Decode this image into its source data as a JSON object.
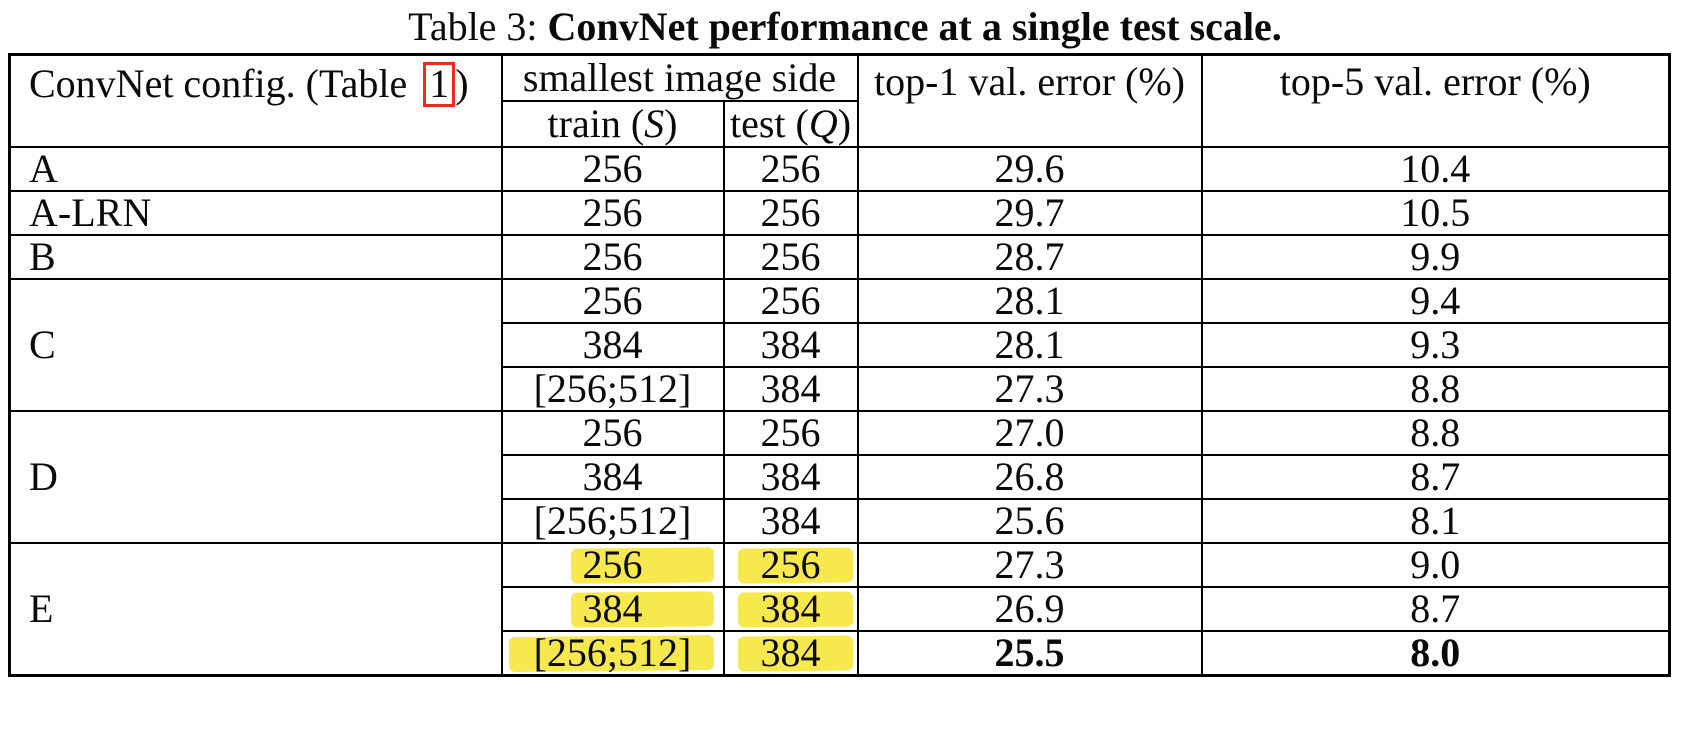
{
  "title": {
    "prefix": "Table 3: ",
    "main": "ConvNet performance at a single test scale."
  },
  "table": {
    "headers": {
      "config_pre": "ConvNet config. (Table ",
      "config_ref": "1",
      "config_post": ")",
      "smallest_image_side": "smallest image side",
      "train_pre": "train (",
      "train_var": "S",
      "train_post": ")",
      "test_pre": "test (",
      "test_var": "Q",
      "test_post": ")",
      "top1": "top-1 val. error (%)",
      "top5": "top-5 val. error (%)"
    },
    "groups": [
      {
        "label": "A",
        "rows": [
          {
            "train": "256",
            "test": "256",
            "top1": "29.6",
            "top5": "10.4",
            "highlight": false,
            "bold": false
          }
        ]
      },
      {
        "label": "A-LRN",
        "rows": [
          {
            "train": "256",
            "test": "256",
            "top1": "29.7",
            "top5": "10.5",
            "highlight": false,
            "bold": false
          }
        ]
      },
      {
        "label": "B",
        "rows": [
          {
            "train": "256",
            "test": "256",
            "top1": "28.7",
            "top5": "9.9",
            "highlight": false,
            "bold": false
          }
        ]
      },
      {
        "label": "C",
        "rows": [
          {
            "train": "256",
            "test": "256",
            "top1": "28.1",
            "top5": "9.4",
            "highlight": false,
            "bold": false
          },
          {
            "train": "384",
            "test": "384",
            "top1": "28.1",
            "top5": "9.3",
            "highlight": false,
            "bold": false
          },
          {
            "train": "[256;512]",
            "test": "384",
            "top1": "27.3",
            "top5": "8.8",
            "highlight": false,
            "bold": false
          }
        ]
      },
      {
        "label": "D",
        "rows": [
          {
            "train": "256",
            "test": "256",
            "top1": "27.0",
            "top5": "8.8",
            "highlight": false,
            "bold": false
          },
          {
            "train": "384",
            "test": "384",
            "top1": "26.8",
            "top5": "8.7",
            "highlight": false,
            "bold": false
          },
          {
            "train": "[256;512]",
            "test": "384",
            "top1": "25.6",
            "top5": "8.1",
            "highlight": false,
            "bold": false
          }
        ]
      },
      {
        "label": "E",
        "rows": [
          {
            "train": "256",
            "test": "256",
            "top1": "27.3",
            "top5": "9.0",
            "highlight": true,
            "bold": false
          },
          {
            "train": "384",
            "test": "384",
            "top1": "26.9",
            "top5": "8.7",
            "highlight": true,
            "bold": false
          },
          {
            "train": "[256;512]",
            "test": "384",
            "top1": "25.5",
            "top5": "8.0",
            "highlight": true,
            "bold": true
          }
        ]
      }
    ],
    "highlight_color": "#f7e84d",
    "reference_box_color": "#ee2b1f"
  }
}
